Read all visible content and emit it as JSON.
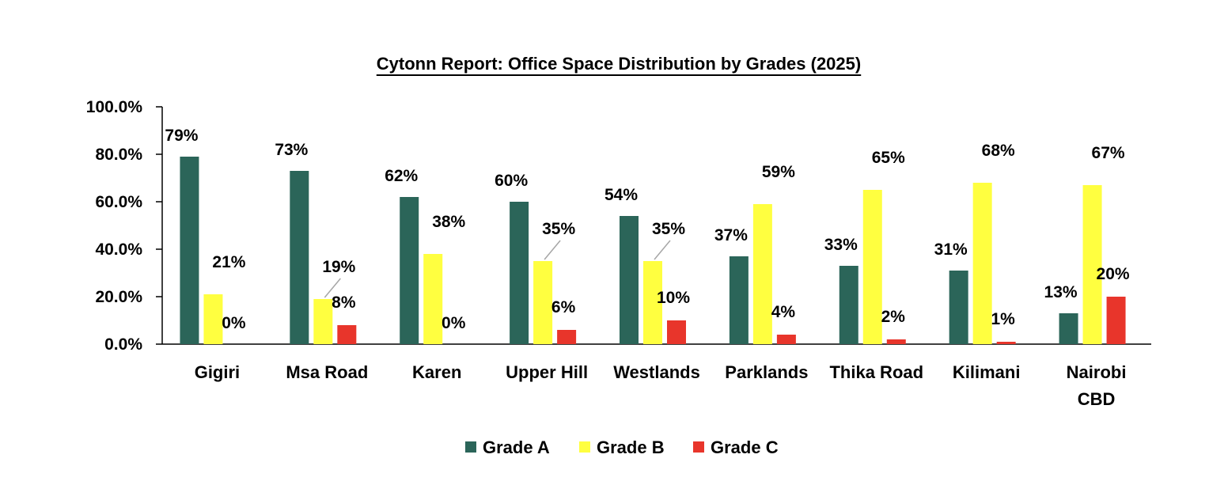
{
  "chart_data": {
    "type": "bar",
    "title": "Cytonn Report: Office Space Distribution by Grades (2025)",
    "xlabel": "",
    "ylabel": "",
    "ylim": [
      0,
      100
    ],
    "yticks": [
      "0.0%",
      "20.0%",
      "40.0%",
      "60.0%",
      "80.0%",
      "100.0%"
    ],
    "grid": false,
    "legend_position": "bottom",
    "categories": [
      [
        "Gigiri"
      ],
      [
        "Msa Road"
      ],
      [
        "Karen"
      ],
      [
        "Upper Hill"
      ],
      [
        "Westlands"
      ],
      [
        "Parklands"
      ],
      [
        "Thika Road"
      ],
      [
        "Kilimani"
      ],
      [
        "Nairobi",
        "CBD"
      ]
    ],
    "series": [
      {
        "name": "Grade A",
        "color": "#2b6559",
        "values": [
          79,
          73,
          62,
          60,
          54,
          37,
          33,
          31,
          13
        ],
        "labels": [
          "79%",
          "73%",
          "62%",
          "60%",
          "54%",
          "37%",
          "33%",
          "31%",
          "13%"
        ]
      },
      {
        "name": "Grade B",
        "color": "#ffff40",
        "values": [
          21,
          19,
          38,
          35,
          35,
          59,
          65,
          68,
          67
        ],
        "labels": [
          "21%",
          "19%",
          "38%",
          "35%",
          "35%",
          "59%",
          "65%",
          "68%",
          "67%"
        ]
      },
      {
        "name": "Grade C",
        "color": "#e8352b",
        "values": [
          0,
          8,
          0,
          6,
          10,
          4,
          2,
          1,
          20
        ],
        "labels": [
          "0%",
          "8%",
          "0%",
          "6%",
          "10%",
          "4%",
          "2%",
          "1%",
          "20%"
        ]
      }
    ]
  }
}
